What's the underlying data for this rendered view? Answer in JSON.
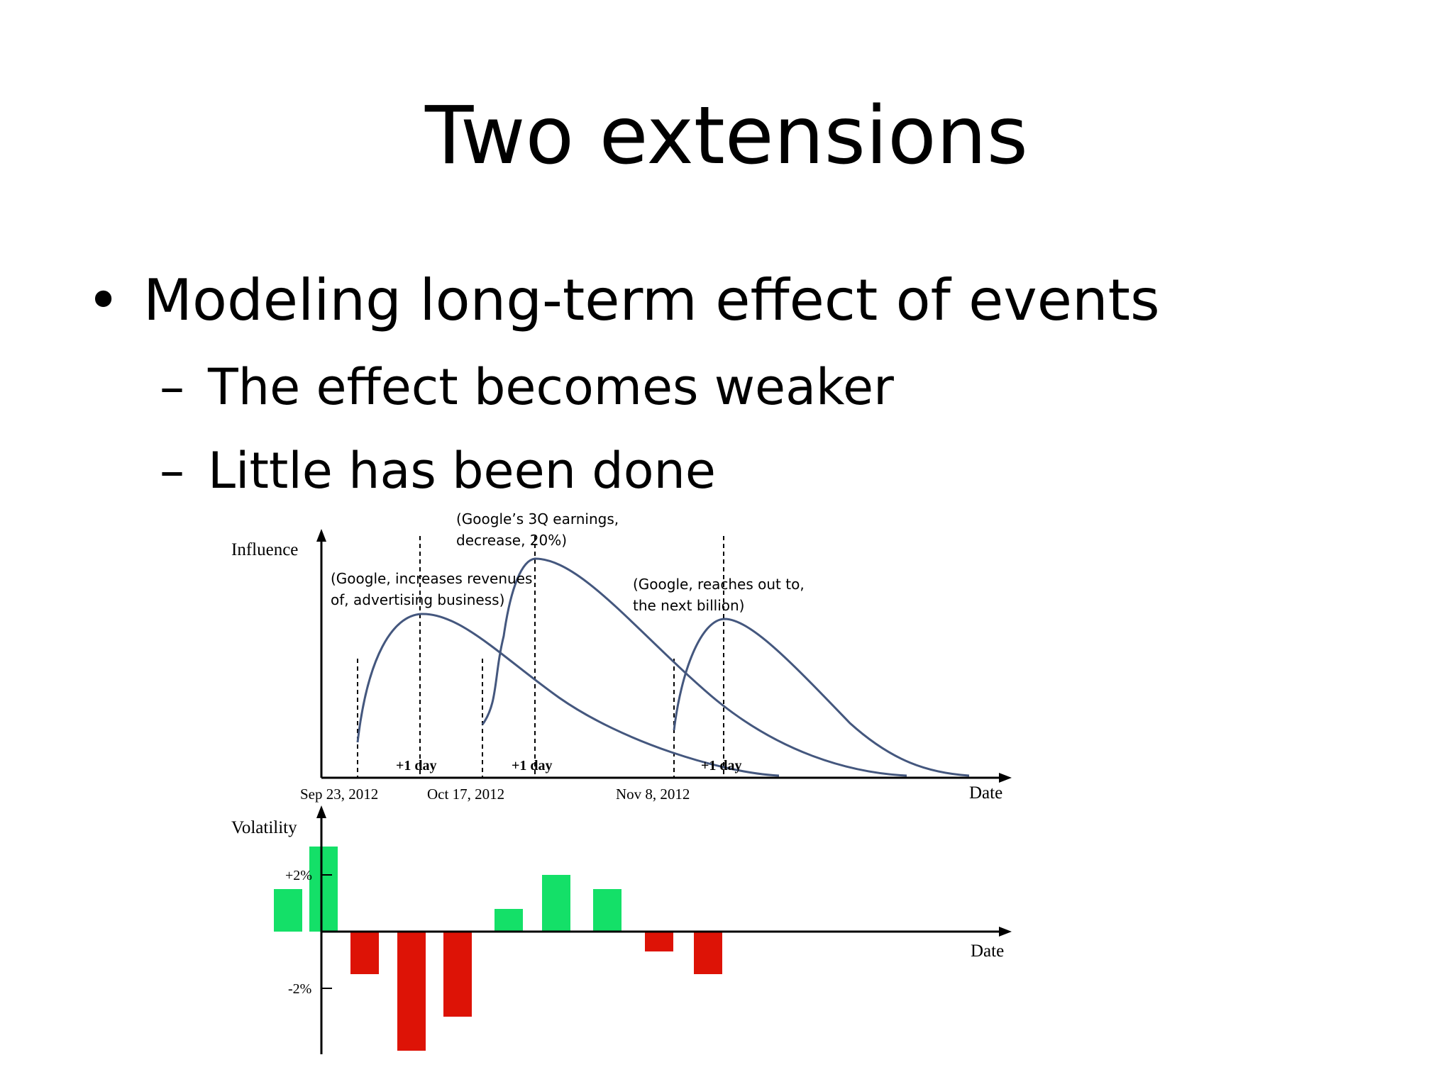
{
  "slide": {
    "title": "Two extensions",
    "bullet": "Modeling long-term effect of events",
    "subbullets": [
      "The effect becomes weaker",
      "Little has been done"
    ],
    "bullet_glyph": "•",
    "dash_glyph": "–"
  },
  "chart_data": [
    {
      "type": "line",
      "ylabel": "Influence",
      "xlabel": "Date",
      "x_ticks": [
        "Sep 23, 2012",
        "Oct 17, 2012",
        "Nov 8, 2012"
      ],
      "markers": [
        "+1 day",
        "+1 day",
        "+1 day"
      ],
      "annotations": [
        {
          "line1": "(Google, increases revenues",
          "line2": "of, advertising business)"
        },
        {
          "line1": "(Google’s 3Q earnings,",
          "line2": "decrease, 20%)"
        },
        {
          "line1": "(Google, reaches out to,",
          "line2": "the next billion)"
        }
      ],
      "line_color": "#44577e"
    },
    {
      "type": "bar",
      "ylabel": "Volatility",
      "xlabel": "Date",
      "y_ticks": [
        "+2%",
        "-2%"
      ],
      "values": [
        1.5,
        3.0,
        -1.5,
        -4.2,
        -3.0,
        0.8,
        2.0,
        1.5,
        -0.7,
        -1.5
      ],
      "positive_color": "#14e068",
      "negative_color": "#dd1306"
    }
  ]
}
